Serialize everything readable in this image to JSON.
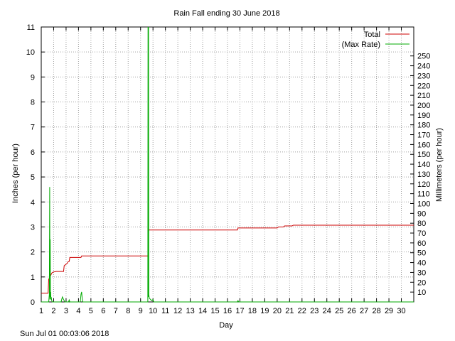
{
  "chart_data": {
    "type": "line",
    "title": "Rain Fall ending 30 June 2018",
    "xlabel": "Day",
    "ylabel_left": "Inches (per hour)",
    "ylabel_right": "Millimeters (per hour)",
    "xlim": [
      1,
      31
    ],
    "ylim_left": [
      0,
      11
    ],
    "ylim_right": [
      0,
      279.4
    ],
    "x_ticks": [
      1,
      2,
      3,
      4,
      5,
      6,
      7,
      8,
      9,
      10,
      11,
      12,
      13,
      14,
      15,
      16,
      17,
      18,
      19,
      20,
      21,
      22,
      23,
      24,
      25,
      26,
      27,
      28,
      29,
      30
    ],
    "y_ticks_left": [
      0,
      1,
      2,
      3,
      4,
      5,
      6,
      7,
      8,
      9,
      10,
      11
    ],
    "y_ticks_right": [
      10,
      20,
      30,
      40,
      50,
      60,
      70,
      80,
      90,
      100,
      110,
      120,
      130,
      140,
      150,
      160,
      170,
      180,
      190,
      200,
      210,
      220,
      230,
      240,
      250
    ],
    "grid": true,
    "legend_position": "top-right",
    "series": [
      {
        "name": "Total",
        "color": "#cc0000",
        "x": [
          1.0,
          1.55,
          1.6,
          1.85,
          1.9,
          2.0,
          2.2,
          2.8,
          2.85,
          3.1,
          3.15,
          3.25,
          3.3,
          4.2,
          4.25,
          9.6,
          9.65,
          16.8,
          16.85,
          20.0,
          20.1,
          20.5,
          20.6,
          21.2,
          21.3,
          31.0
        ],
        "values": [
          0.35,
          0.35,
          0.9,
          1.15,
          1.18,
          1.2,
          1.22,
          1.22,
          1.45,
          1.55,
          1.6,
          1.62,
          1.78,
          1.78,
          1.84,
          1.84,
          2.88,
          2.88,
          2.96,
          2.96,
          3.0,
          3.0,
          3.04,
          3.04,
          3.07,
          3.07
        ]
      },
      {
        "name": "(Max Rate)",
        "color": "#00aa00",
        "x": [
          1.0,
          1.6,
          1.65,
          1.68,
          1.7,
          1.72,
          1.74,
          1.76,
          1.78,
          1.8,
          1.85,
          1.9,
          2.6,
          2.65,
          2.7,
          2.8,
          2.9,
          3.2,
          3.25,
          3.3,
          4.15,
          4.2,
          4.25,
          4.3,
          4.35,
          9.58,
          9.6,
          9.62,
          9.64,
          9.66,
          9.7,
          9.8,
          9.9,
          10.0,
          10.05,
          16.8,
          16.85,
          16.9,
          31.0
        ],
        "values": [
          0,
          0,
          0.3,
          4.6,
          0.1,
          2.5,
          0.2,
          0.4,
          0.1,
          0.2,
          0.05,
          0,
          0,
          0.1,
          0.2,
          0.1,
          0,
          0,
          0.08,
          0,
          0,
          0.3,
          0.4,
          0.15,
          0,
          0,
          11.0,
          0.2,
          11.0,
          0.3,
          0.15,
          0.1,
          0.05,
          0.1,
          0,
          0,
          0.05,
          0,
          0
        ]
      }
    ]
  },
  "footer": {
    "timestamp": "Sun Jul 01 00:03:06 2018"
  }
}
